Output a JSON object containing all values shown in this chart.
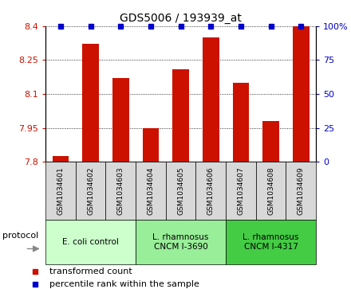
{
  "title": "GDS5006 / 193939_at",
  "samples": [
    "GSM1034601",
    "GSM1034602",
    "GSM1034603",
    "GSM1034604",
    "GSM1034605",
    "GSM1034606",
    "GSM1034607",
    "GSM1034608",
    "GSM1034609"
  ],
  "bar_values": [
    7.825,
    8.32,
    8.17,
    7.95,
    8.21,
    8.35,
    8.15,
    7.98,
    8.4
  ],
  "percentile_values": [
    100,
    100,
    100,
    100,
    100,
    100,
    100,
    100,
    100
  ],
  "bar_color": "#cc1100",
  "percentile_color": "#0000cc",
  "ylim": [
    7.8,
    8.4
  ],
  "yticks_left": [
    7.8,
    7.95,
    8.1,
    8.25,
    8.4
  ],
  "yticks_right": [
    0,
    25,
    50,
    75,
    100
  ],
  "sample_box_color": "#d8d8d8",
  "groups": [
    {
      "label": "E. coli control",
      "start": 0,
      "end": 3,
      "color": "#ccffcc"
    },
    {
      "label": "L. rhamnosus\nCNCM I-3690",
      "start": 3,
      "end": 6,
      "color": "#99ee99"
    },
    {
      "label": "L. rhamnosus\nCNCM I-4317",
      "start": 6,
      "end": 9,
      "color": "#44cc44"
    }
  ],
  "legend_bar_label": "transformed count",
  "legend_pct_label": "percentile rank within the sample",
  "protocol_label": "protocol",
  "title_fontsize": 10,
  "axis_label_color_left": "#cc1100",
  "axis_label_color_right": "#0000cc"
}
